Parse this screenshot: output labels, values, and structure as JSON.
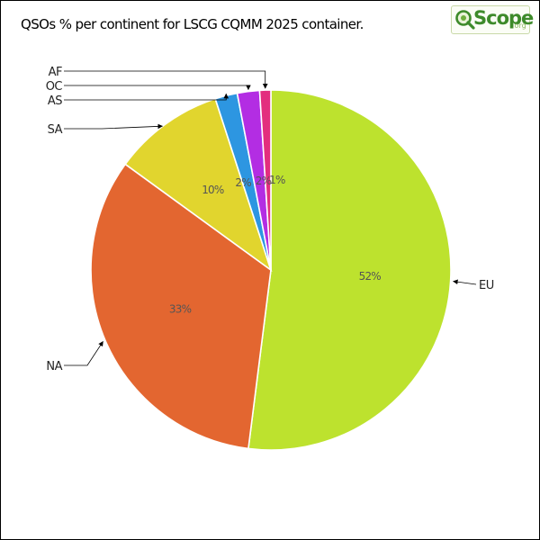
{
  "chart_data": {
    "type": "pie",
    "title": "QSOs % per continent for LSCG CQMM 2025 container.",
    "categories": [
      "EU",
      "NA",
      "SA",
      "AS",
      "OC",
      "AF"
    ],
    "values": [
      52,
      33,
      10,
      2,
      2,
      1
    ],
    "data_labels": [
      "52%",
      "33%",
      "10%",
      "2%",
      "2%",
      "1%"
    ],
    "colors": [
      "#bde22e",
      "#e36630",
      "#e1d52e",
      "#2d96e1",
      "#b32de3",
      "#e32e7e"
    ],
    "legend": "none"
  },
  "logo": {
    "text": "Scope",
    "suffix": ".org",
    "icon": "q-magnifier-icon",
    "colors": {
      "text": "#3d8a2a",
      "icon": "#3d8a2a"
    }
  }
}
